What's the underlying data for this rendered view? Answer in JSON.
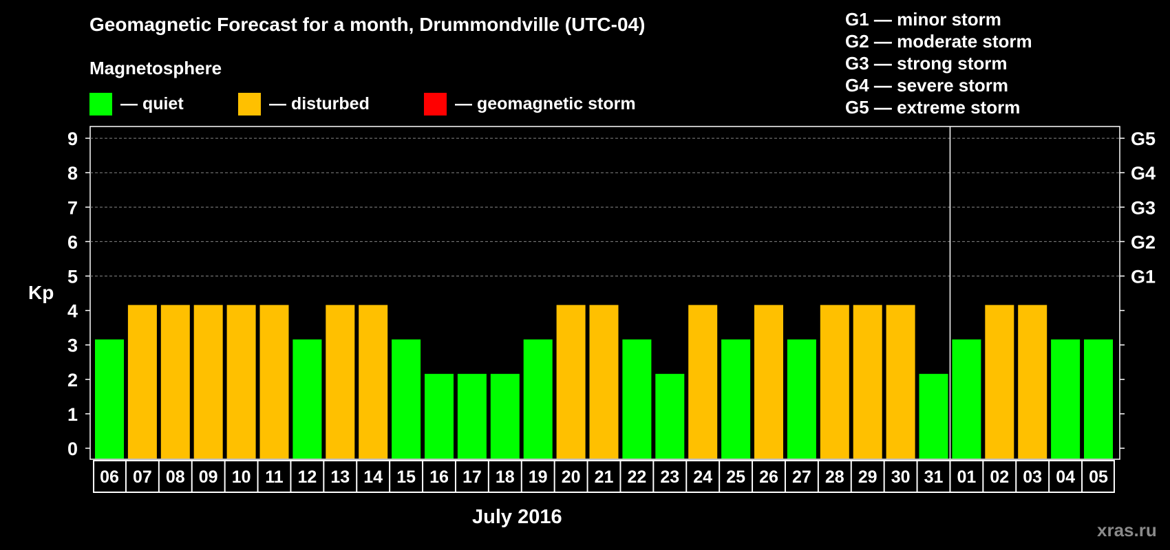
{
  "title": "Geomagnetic Forecast for a month, Drummondville (UTC-04)",
  "magnetosphere": {
    "title": "Magnetosphere",
    "legend": [
      {
        "label": "— quiet",
        "color": "#00ff00"
      },
      {
        "label": "— disturbed",
        "color": "#ffc000"
      },
      {
        "label": "— geomagnetic storm",
        "color": "#ff0000"
      }
    ]
  },
  "storm_scale": [
    "G1 — minor storm",
    "G2 — moderate storm",
    "G3 — strong storm",
    "G4 — severe storm",
    "G5 — extreme storm"
  ],
  "watermark": "xras.ru",
  "chart_data": {
    "type": "bar",
    "ylabel": "Kp",
    "xlabel": "July 2016",
    "ylim": [
      0,
      9
    ],
    "y_ticks": [
      0,
      1,
      2,
      3,
      4,
      5,
      6,
      7,
      8,
      9
    ],
    "right_axis_labels": [
      {
        "kp": 5,
        "label": "G1"
      },
      {
        "kp": 6,
        "label": "G2"
      },
      {
        "kp": 7,
        "label": "G3"
      },
      {
        "kp": 8,
        "label": "G4"
      },
      {
        "kp": 9,
        "label": "G5"
      }
    ],
    "grid": "dashed horizontal lines at Kp 5 to 9",
    "month_divider_after": "31",
    "categories": [
      "06",
      "07",
      "08",
      "09",
      "10",
      "11",
      "12",
      "13",
      "14",
      "15",
      "16",
      "17",
      "18",
      "19",
      "20",
      "21",
      "22",
      "23",
      "24",
      "25",
      "26",
      "27",
      "28",
      "29",
      "30",
      "31",
      "01",
      "02",
      "03",
      "04",
      "05"
    ],
    "values": [
      3,
      4,
      4,
      4,
      4,
      4,
      3,
      4,
      4,
      3,
      2,
      2,
      2,
      3,
      4,
      4,
      3,
      2,
      4,
      3,
      4,
      3,
      4,
      4,
      4,
      2,
      3,
      4,
      4,
      3,
      3
    ],
    "colors": {
      "quiet": "#00ff00",
      "disturbed": "#ffc000",
      "storm": "#ff0000"
    }
  }
}
